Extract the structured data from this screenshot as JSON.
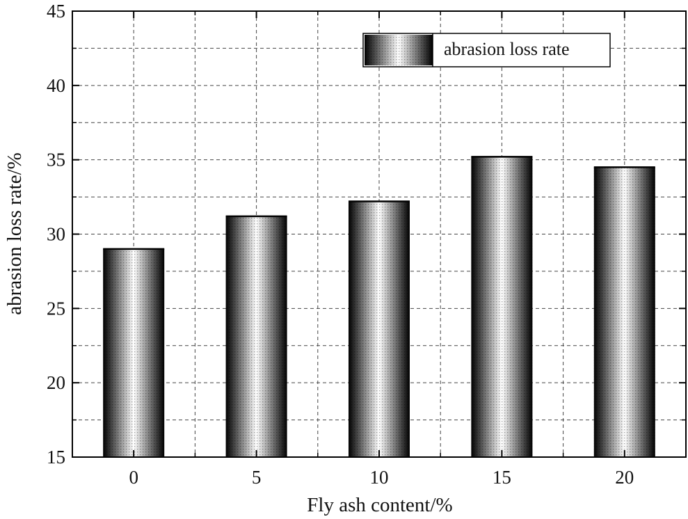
{
  "chart_data": {
    "type": "bar",
    "categories": [
      "0",
      "5",
      "10",
      "15",
      "20"
    ],
    "series": [
      {
        "name": "abrasion loss rate",
        "values": [
          29.0,
          31.2,
          32.2,
          35.2,
          34.5
        ]
      }
    ],
    "xlabel": "Fly ash content/%",
    "ylabel": "abrasion loss rate/%",
    "ylim": [
      15,
      45
    ],
    "yticks": [
      15,
      20,
      25,
      30,
      35,
      40,
      45
    ],
    "ytick_labels": [
      "15",
      "20",
      "25",
      "30",
      "35",
      "40",
      "45"
    ],
    "grid": true,
    "legend": "top-right"
  }
}
